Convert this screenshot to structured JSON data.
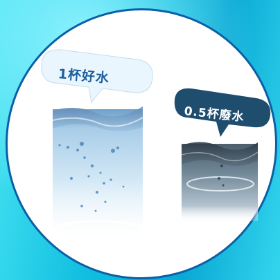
{
  "good_water": {
    "label": "1杯好水",
    "bubble_color": "#eaf6fd",
    "text_color": "#1d5e9e"
  },
  "waste_water": {
    "label": "0.5杯廢水",
    "bubble_color": "#1f4d6e",
    "text_color": "#ffffff"
  },
  "colors": {
    "background": "#1fc6e0",
    "circle_border": "#0a5fa6",
    "circle_fill": "#ffffff"
  }
}
